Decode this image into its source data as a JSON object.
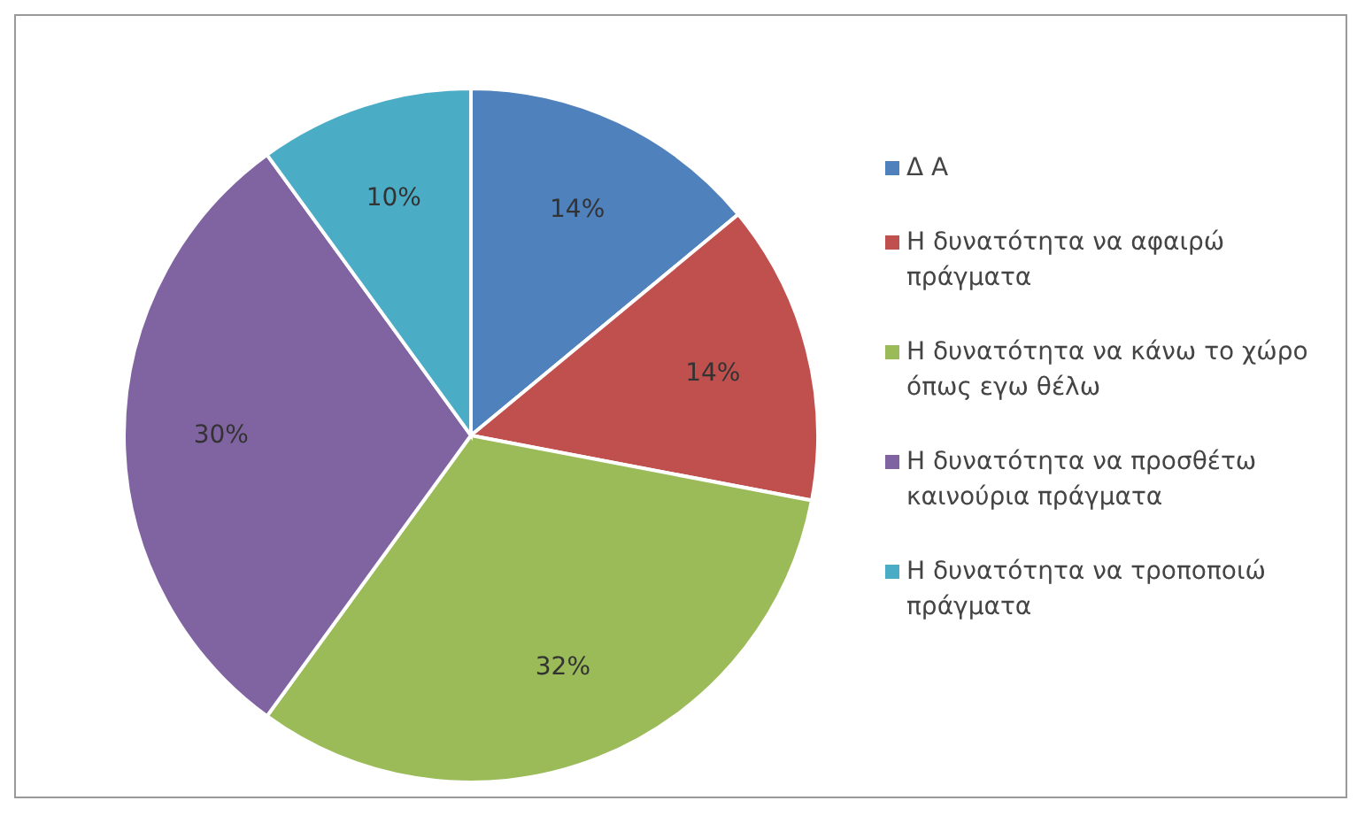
{
  "chart_data": {
    "type": "pie",
    "categories": [
      "Δ Α",
      "Η δυνατότητα να αφαιρώ πράγματα",
      "Η δυνατότητα να κάνω το χώρο όπως εγω θέλω",
      "Η δυνατότητα να προσθέτω καινούρια πράγματα",
      "Η δυνατότητα να τροποποιώ πράγματα"
    ],
    "values": [
      14,
      14,
      32,
      30,
      10
    ],
    "value_labels": [
      "14%",
      "14%",
      "32%",
      "30%",
      "10%"
    ],
    "colors": [
      "#4f81bd",
      "#c0504d",
      "#9bbb59",
      "#8064a2",
      "#4bacc6"
    ],
    "legend": "right"
  }
}
